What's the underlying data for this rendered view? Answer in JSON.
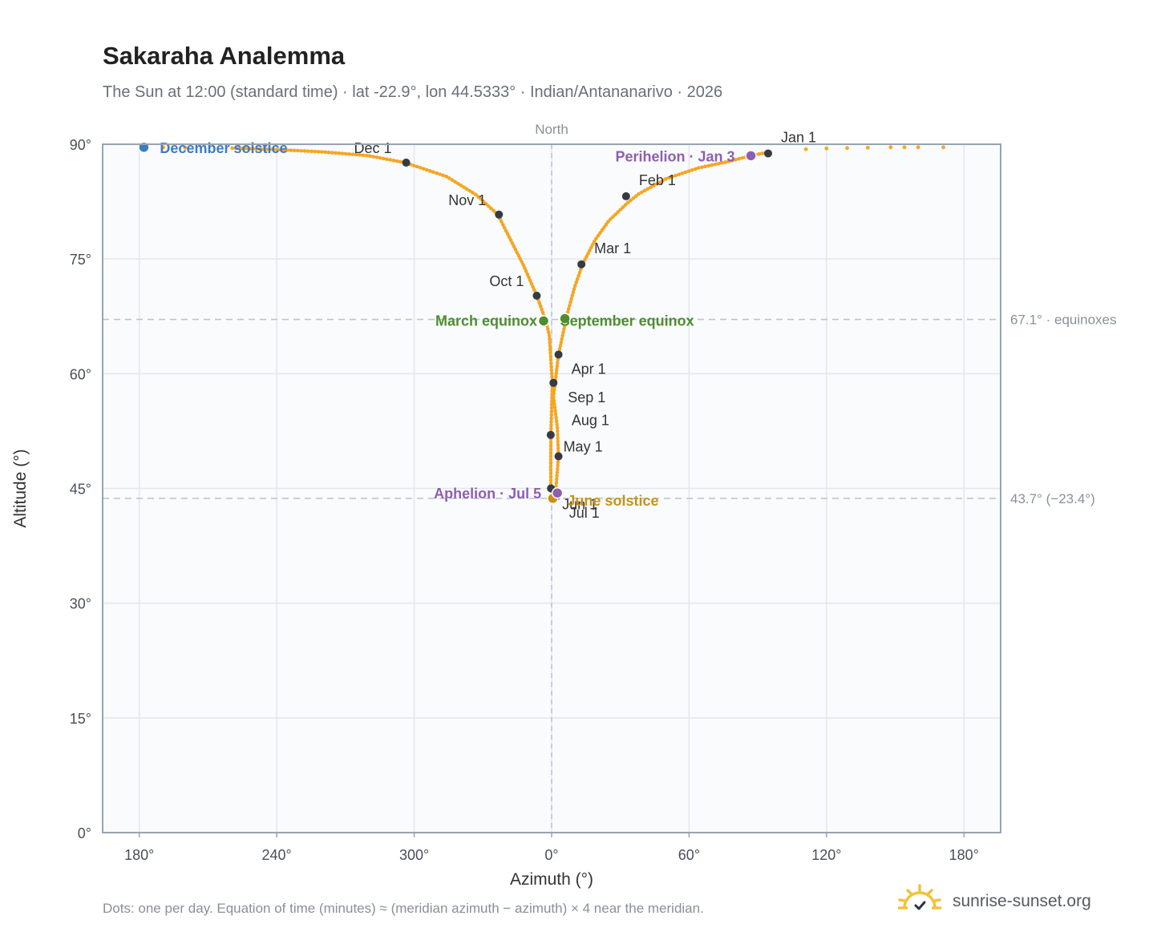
{
  "title": "Sakaraha Analemma",
  "subtitle": "The Sun at 12:00 (standard time) · lat -22.9°, lon 44.5333° · Indian/Antananarivo · 2026",
  "footnote": "Dots: one per day. Equation of time (minutes) ≈ (meridian azimuth − azimuth) × 4 near the meridian.",
  "brand": {
    "name": "sunrise-sunset.org",
    "logo_icon": "sun-logo-icon"
  },
  "chart_data": {
    "type": "scatter",
    "xlabel": "Azimuth (°)",
    "ylabel": "Altitude (°)",
    "xlim": [
      -196,
      196
    ],
    "ylim": [
      0,
      90
    ],
    "x_tick_values": [
      -180,
      -120,
      -60,
      0,
      60,
      120,
      180
    ],
    "x_ticks": [
      "180°",
      "240°",
      "300°",
      "0°",
      "60°",
      "120°",
      "180°"
    ],
    "y_ticks": [
      "0°",
      "15°",
      "30°",
      "45°",
      "60°",
      "75°",
      "90°"
    ],
    "y_tick_values": [
      0,
      15,
      30,
      45,
      60,
      75,
      90
    ],
    "grid": true,
    "meridian_label": "North",
    "meridian_x": 0,
    "reference_lines": [
      {
        "y": 67.1,
        "label": "67.1° · equinoxes"
      },
      {
        "y": 43.7,
        "label": "43.7° (−23.4°)"
      }
    ],
    "curve_note": "Dots: one per day",
    "path_points": [
      [
        171,
        89.6
      ],
      [
        160,
        89.6
      ],
      [
        148,
        89.6
      ],
      [
        138,
        89.55
      ],
      [
        129,
        89.5
      ],
      [
        120,
        89.45
      ],
      [
        111,
        89.35
      ],
      [
        102,
        89.2
      ],
      [
        93.5,
        88.9
      ],
      [
        87,
        88.5
      ],
      [
        78,
        87.8
      ],
      [
        64,
        86.9
      ],
      [
        50,
        85.5
      ],
      [
        38,
        83.5
      ],
      [
        33,
        82.3
      ],
      [
        25,
        80.0
      ],
      [
        19,
        77.5
      ],
      [
        13.5,
        74.3
      ],
      [
        10,
        71.3
      ],
      [
        7,
        68.0
      ],
      [
        5.5,
        66.0
      ],
      [
        3,
        62.5
      ],
      [
        1.5,
        58.8
      ],
      [
        0.8,
        57.0
      ],
      [
        2.5,
        53.0
      ],
      [
        3,
        49.2
      ],
      [
        2,
        45.5
      ],
      [
        1.5,
        44.2
      ],
      [
        0.5,
        43.7
      ],
      [
        0,
        44.4
      ],
      [
        -0.3,
        45.0
      ],
      [
        -0.4,
        47.5
      ],
      [
        -0.3,
        52.0
      ],
      [
        0,
        55.5
      ],
      [
        0.3,
        58.8
      ],
      [
        -1,
        65.0
      ],
      [
        -2.5,
        66.9
      ],
      [
        -6.5,
        70.2
      ],
      [
        -12,
        74.0
      ],
      [
        -23.5,
        80.8
      ],
      [
        -33,
        83.4
      ],
      [
        -46,
        85.8
      ],
      [
        -64,
        87.6
      ],
      [
        -80,
        88.5
      ],
      [
        -100,
        89.0
      ],
      [
        -120,
        89.3
      ],
      [
        -140,
        89.5
      ],
      [
        -160,
        89.55
      ],
      [
        -179,
        89.6
      ]
    ],
    "sparse_ranges": [
      [
        -180,
        -145
      ],
      [
        95,
        172
      ]
    ],
    "month_markers": [
      {
        "label": "Jan 1",
        "x": 94.5,
        "y": 88.8
      },
      {
        "label": "Feb 1",
        "x": 32.5,
        "y": 83.2
      },
      {
        "label": "Mar 1",
        "x": 13,
        "y": 74.3
      },
      {
        "label": "Apr 1",
        "x": 3,
        "y": 62.5
      },
      {
        "label": "May 1",
        "x": 3,
        "y": 49.2
      },
      {
        "label": "Jun 1",
        "x": -0.3,
        "y": 45.0
      },
      {
        "label": "Jul 1",
        "x": 2,
        "y": 43.9
      },
      {
        "label": "Aug 1",
        "x": -0.4,
        "y": 52.0
      },
      {
        "label": "Sep 1",
        "x": 0.8,
        "y": 58.8
      },
      {
        "label": "Oct 1",
        "x": -6.5,
        "y": 70.2
      },
      {
        "label": "Nov 1",
        "x": -23,
        "y": 80.8
      },
      {
        "label": "Dec 1",
        "x": -63.5,
        "y": 87.6
      }
    ],
    "events": [
      {
        "label": "December solstice",
        "x": -178,
        "y": 89.6,
        "color": "#3a7cc4"
      },
      {
        "label": "March equinox",
        "x": -3.5,
        "y": 66.9,
        "color": "#4e8e2e"
      },
      {
        "label": "September equinox",
        "x": 5.8,
        "y": 67.2,
        "color": "#4e8e2e"
      },
      {
        "label": "June solstice",
        "x": 0.5,
        "y": 43.7,
        "color": "#c8921a"
      },
      {
        "label": "Perihelion · Jan 3",
        "x": 87,
        "y": 88.5,
        "color": "#8e5fb0"
      },
      {
        "label": "Aphelion · Jul 5",
        "x": 2.5,
        "y": 44.4,
        "color": "#8e5fb0"
      }
    ],
    "colors": {
      "curve": "#f5a623",
      "marker": "#353b42",
      "grid": "#e3e7ec",
      "plot_bg": "#f9fbfd",
      "reference": "#b7c3cf"
    }
  }
}
